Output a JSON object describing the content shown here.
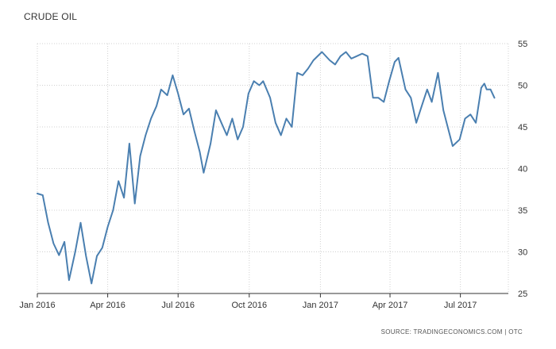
{
  "chart_title": "CRUDE OIL",
  "source_note": "SOURCE: TRADINGECONOMICS.COM | OTC",
  "colors": {
    "line": "#4a7fb0",
    "grid": "#d0d0d0",
    "axis": "#333333"
  },
  "chart_data": {
    "type": "line",
    "title": "CRUDE OIL",
    "xlabel": "",
    "ylabel": "",
    "ylim": [
      25,
      55
    ],
    "xlim": [
      "2016-01-01",
      "2017-09-01"
    ],
    "grid": true,
    "y_axis_side": "right",
    "x_ticks": [
      {
        "date": "2016-01-01",
        "label": "Jan 2016"
      },
      {
        "date": "2016-04-01",
        "label": "Apr 2016"
      },
      {
        "date": "2016-07-01",
        "label": "Jul 2016"
      },
      {
        "date": "2016-10-01",
        "label": "Oct 2016"
      },
      {
        "date": "2017-01-01",
        "label": "Jan 2017"
      },
      {
        "date": "2017-04-01",
        "label": "Apr 2017"
      },
      {
        "date": "2017-07-01",
        "label": "Jul 2017"
      }
    ],
    "y_ticks": [
      25,
      30,
      35,
      40,
      45,
      50,
      55
    ],
    "series": [
      {
        "x": [
          "2016-01-01",
          "2016-01-08",
          "2016-01-15",
          "2016-01-22",
          "2016-01-29",
          "2016-02-05",
          "2016-02-11",
          "2016-02-19",
          "2016-02-26",
          "2016-03-04",
          "2016-03-11",
          "2016-03-18",
          "2016-03-25",
          "2016-04-01",
          "2016-04-08",
          "2016-04-15",
          "2016-04-22",
          "2016-04-29",
          "2016-05-06",
          "2016-05-13",
          "2016-05-20",
          "2016-05-27",
          "2016-06-03",
          "2016-06-09",
          "2016-06-17",
          "2016-06-24",
          "2016-07-01",
          "2016-07-08",
          "2016-07-15",
          "2016-07-22",
          "2016-07-29",
          "2016-08-03",
          "2016-08-12",
          "2016-08-19",
          "2016-08-26",
          "2016-09-02",
          "2016-09-09",
          "2016-09-16",
          "2016-09-23",
          "2016-09-30",
          "2016-10-07",
          "2016-10-14",
          "2016-10-19",
          "2016-10-28",
          "2016-11-04",
          "2016-11-11",
          "2016-11-18",
          "2016-11-25",
          "2016-12-02",
          "2016-12-09",
          "2016-12-16",
          "2016-12-23",
          "2017-01-03",
          "2017-01-13",
          "2017-01-20",
          "2017-01-27",
          "2017-02-03",
          "2017-02-10",
          "2017-02-17",
          "2017-02-24",
          "2017-03-03",
          "2017-03-10",
          "2017-03-17",
          "2017-03-24",
          "2017-03-31",
          "2017-04-07",
          "2017-04-12",
          "2017-04-21",
          "2017-04-28",
          "2017-05-05",
          "2017-05-12",
          "2017-05-19",
          "2017-05-25",
          "2017-06-02",
          "2017-06-09",
          "2017-06-16",
          "2017-06-21",
          "2017-06-30",
          "2017-07-07",
          "2017-07-14",
          "2017-07-21",
          "2017-07-28",
          "2017-08-01",
          "2017-08-04",
          "2017-08-09",
          "2017-08-14"
        ],
        "y": [
          37.0,
          36.8,
          33.5,
          31.0,
          29.6,
          31.2,
          26.6,
          30.0,
          33.5,
          29.5,
          26.2,
          29.5,
          30.5,
          33.0,
          35.0,
          38.5,
          36.5,
          43.0,
          35.8,
          41.5,
          44.0,
          46.0,
          47.5,
          49.5,
          48.8,
          51.2,
          49.0,
          46.5,
          47.2,
          44.5,
          42.0,
          39.5,
          43.0,
          47.0,
          45.5,
          44.0,
          46.0,
          43.5,
          45.0,
          49.0,
          50.5,
          50.0,
          50.5,
          48.5,
          45.5,
          44.0,
          46.0,
          45.0,
          51.5,
          51.2,
          52.0,
          53.0,
          54.0,
          53.0,
          52.5,
          53.5,
          54.0,
          53.2,
          53.5,
          53.8,
          53.5,
          48.5,
          48.5,
          48.0,
          50.5,
          52.8,
          53.3,
          49.5,
          48.5,
          45.5,
          47.5,
          49.5,
          48.0,
          51.5,
          47.0,
          44.5,
          42.7,
          43.5,
          46.0,
          46.5,
          45.5,
          49.7,
          50.2,
          49.5,
          49.5,
          48.5
        ]
      }
    ]
  }
}
